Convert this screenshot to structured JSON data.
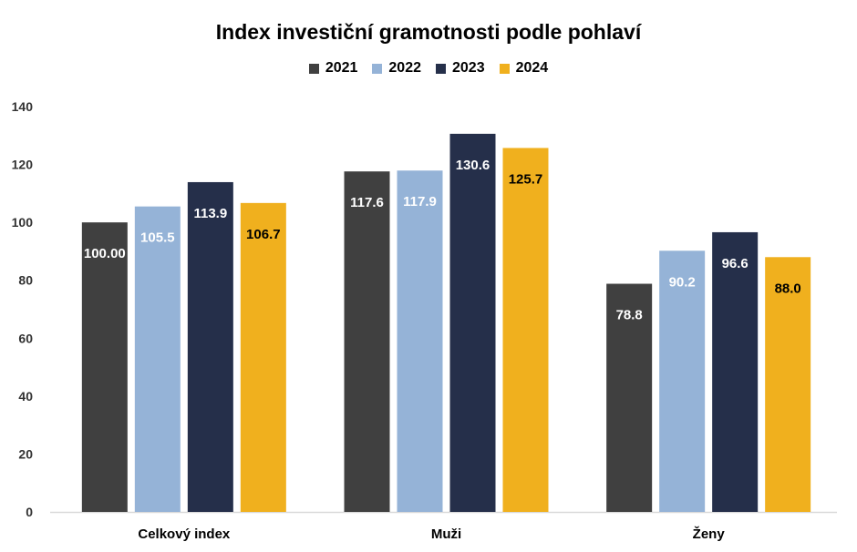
{
  "chart_data": {
    "type": "bar",
    "title": "Index investiční gramotnosti podle pohlaví",
    "categories": [
      "Celkový index",
      "Muži",
      "Ženy"
    ],
    "series": [
      {
        "name": "2021",
        "color": "#404040",
        "values": [
          100.0,
          117.6,
          78.8
        ],
        "labels": [
          "100.00",
          "117.6",
          "78.8"
        ],
        "label_color": "#ffffff"
      },
      {
        "name": "2022",
        "color": "#95b3d7",
        "values": [
          105.5,
          117.9,
          90.2
        ],
        "labels": [
          "105.5",
          "117.9",
          "90.2"
        ],
        "label_color": "#ffffff"
      },
      {
        "name": "2023",
        "color": "#252f4a",
        "values": [
          113.9,
          130.6,
          96.6
        ],
        "labels": [
          "113.9",
          "130.6",
          "96.6"
        ],
        "label_color": "#ffffff"
      },
      {
        "name": "2024",
        "color": "#f0b01e",
        "values": [
          106.7,
          125.7,
          88.0
        ],
        "labels": [
          "106.7",
          "125.7",
          "88.0"
        ],
        "label_color": "#000000"
      }
    ],
    "yticks": [
      "0",
      "20",
      "40",
      "60",
      "80",
      "100",
      "120",
      "140"
    ],
    "ylim": [
      0,
      140
    ],
    "legend": "top",
    "grid": false
  }
}
